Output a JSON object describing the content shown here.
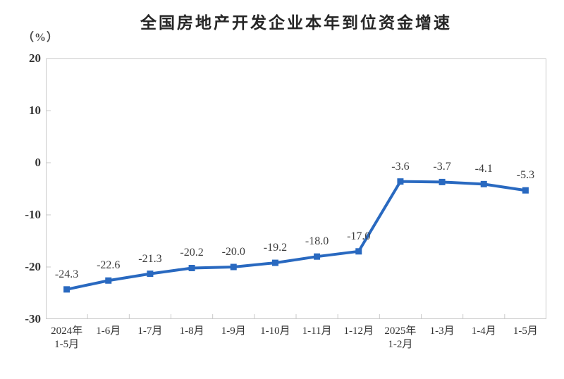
{
  "chart_data": {
    "type": "line",
    "title": "全国房地产开发企业本年到位资金增速",
    "unit_label": "（%）",
    "categories": [
      [
        "2024年",
        "1-5月"
      ],
      [
        "1-6月"
      ],
      [
        "1-7月"
      ],
      [
        "1-8月"
      ],
      [
        "1-9月"
      ],
      [
        "1-10月"
      ],
      [
        "1-11月"
      ],
      [
        "1-12月"
      ],
      [
        "2025年",
        "1-2月"
      ],
      [
        "1-3月"
      ],
      [
        "1-4月"
      ],
      [
        "1-5月"
      ]
    ],
    "values": [
      -24.3,
      -22.6,
      -21.3,
      -20.2,
      -20.0,
      -19.2,
      -18.0,
      -17.0,
      -3.6,
      -3.7,
      -4.1,
      -5.3
    ],
    "point_labels": [
      "-24.3",
      "-22.6",
      "-21.3",
      "-20.2",
      "-20.0",
      "-19.2",
      "-18.0",
      "-17.0",
      "-3.6",
      "-3.7",
      "-4.1",
      "-5.3"
    ],
    "yticks": [
      20,
      10,
      0,
      -10,
      -20,
      -30
    ],
    "ylim": [
      -30,
      20
    ],
    "grid": false,
    "legend": "none",
    "marker": "square",
    "colors": {
      "line": "#2969c0",
      "marker": "#2969c0",
      "axis_border": "#c9c9c9",
      "tick": "#c9c9c9",
      "title_text": "#262626",
      "axis_text": "#333333",
      "label_text": "#3d3d3d",
      "background": "#ffffff"
    }
  }
}
